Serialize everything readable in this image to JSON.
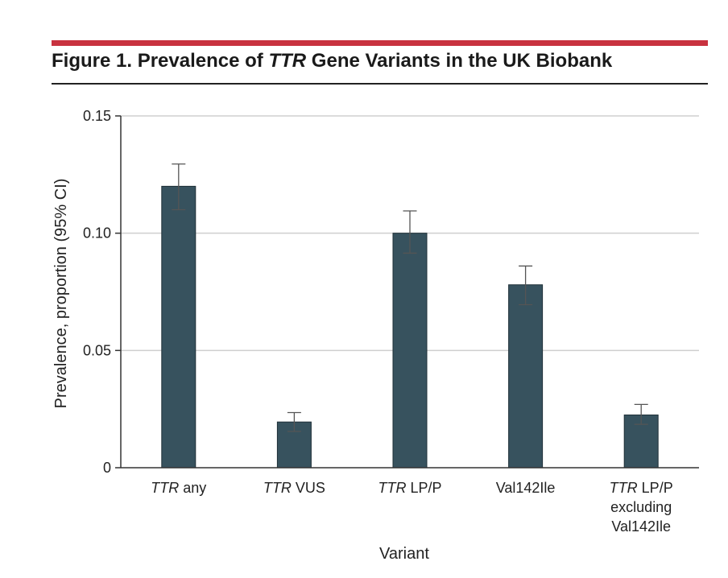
{
  "figure": {
    "label": "Figure 1.",
    "title_before": "Prevalence of",
    "title_gene": "TTR",
    "title_after": "Gene Variants in the UK Biobank"
  },
  "colors": {
    "accent_rule": "#c8323f",
    "bar": "#37525e",
    "grid": "#cfcfcf",
    "axis": "#333333"
  },
  "chart_data": {
    "type": "bar",
    "xlabel": "Variant",
    "ylabel": "Prevalence, proportion (95% CI)",
    "ylim": [
      0,
      0.15
    ],
    "yticks": [
      {
        "value": 0,
        "label": "0"
      },
      {
        "value": 0.05,
        "label": "0.05"
      },
      {
        "value": 0.1,
        "label": "0.10"
      },
      {
        "value": 0.15,
        "label": "0.15"
      }
    ],
    "grid": true,
    "categories": [
      {
        "lines": [
          {
            "italic": "TTR",
            "text": " any"
          }
        ]
      },
      {
        "lines": [
          {
            "italic": "TTR",
            "text": " VUS"
          }
        ]
      },
      {
        "lines": [
          {
            "italic": "TTR",
            "text": " LP/P"
          }
        ]
      },
      {
        "lines": [
          {
            "italic": "",
            "text": "Val142Ile"
          }
        ]
      },
      {
        "lines": [
          {
            "italic": "TTR",
            "text": " LP/P"
          },
          {
            "italic": "",
            "text": "excluding"
          },
          {
            "italic": "",
            "text": "Val142Ile"
          }
        ]
      }
    ],
    "values": [
      0.12,
      0.0195,
      0.1,
      0.078,
      0.0225
    ],
    "ci_lower": [
      0.11,
      0.0155,
      0.0915,
      0.0695,
      0.0185
    ],
    "ci_upper": [
      0.1295,
      0.0235,
      0.1095,
      0.086,
      0.027
    ]
  }
}
